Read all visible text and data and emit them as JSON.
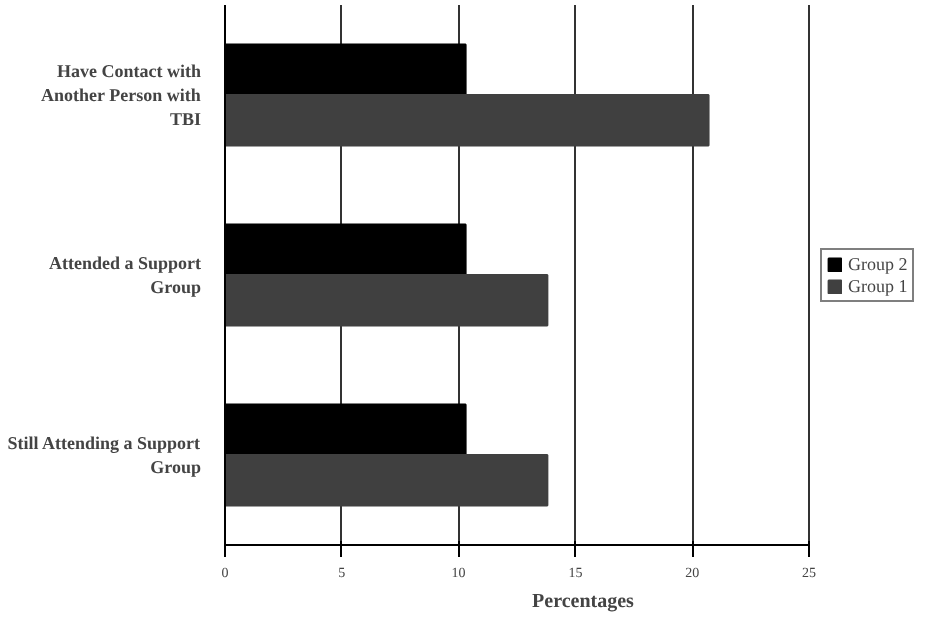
{
  "chart_data": {
    "type": "bar",
    "orientation": "horizontal",
    "xlabel": "Percentages",
    "categories": [
      "Have Contact with\nAnother Person with\nTBI",
      "Attended a Support\nGroup",
      "Still Attending a Support\nGroup"
    ],
    "series": [
      {
        "name": "Group 2",
        "color": "#000000",
        "values": [
          10.3,
          10.3,
          10.3
        ]
      },
      {
        "name": "Group 1",
        "color": "#404040",
        "values": [
          20.7,
          13.8,
          13.8
        ]
      }
    ],
    "xlim": [
      0,
      25
    ],
    "xticks": [
      0,
      5,
      10,
      15,
      20,
      25
    ],
    "grid": "x",
    "legend": "right"
  }
}
